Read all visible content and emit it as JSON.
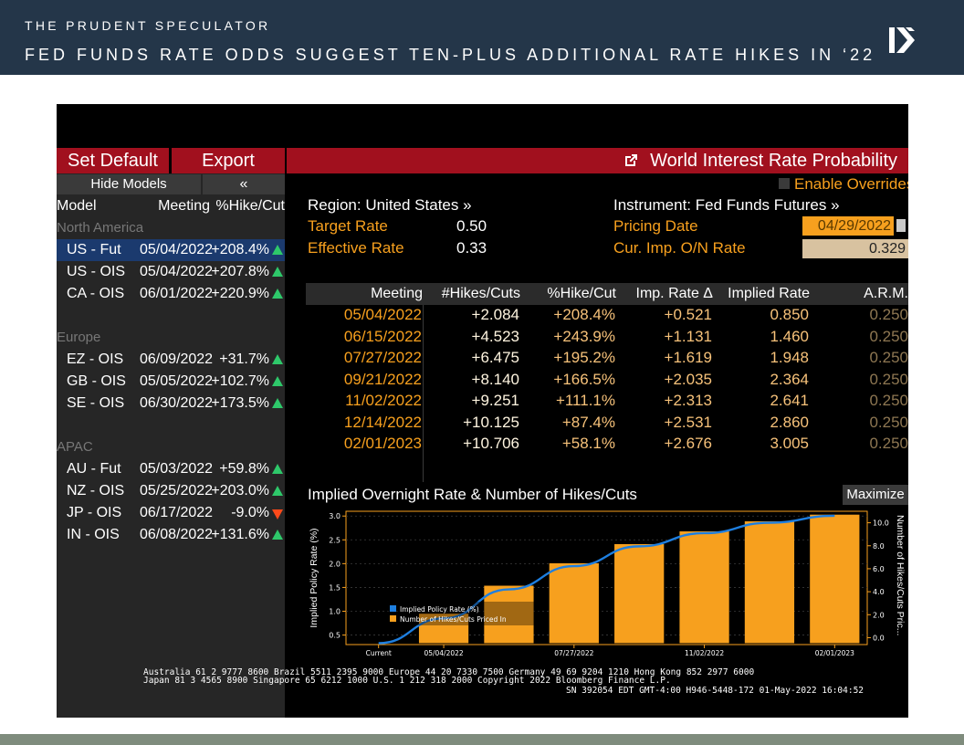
{
  "slide": {
    "brand": "THE PRUDENT SPECULATOR",
    "headline": "FED FUNDS RATE ODDS SUGGEST TEN-PLUS ADDITIONAL RATE HIKES IN ‘22"
  },
  "toolbar": {
    "set_default": "Set Default",
    "export": "Export",
    "title": "World Interest Rate Probability",
    "hide_models": "Hide Models",
    "collapse": "«",
    "enable_overrides": "Enable Overrides"
  },
  "models_panel": {
    "columns": [
      "Model",
      "Meeting",
      "%Hike/Cut"
    ],
    "groups": [
      {
        "name": "North America",
        "rows": [
          {
            "model": "US - Fut",
            "meeting": "05/04/2022",
            "pct": "+208.4%",
            "dir": "up",
            "selected": true
          },
          {
            "model": "US - OIS",
            "meeting": "05/04/2022",
            "pct": "+207.8%",
            "dir": "up"
          },
          {
            "model": "CA - OIS",
            "meeting": "06/01/2022",
            "pct": "+220.9%",
            "dir": "up"
          }
        ]
      },
      {
        "name": "Europe",
        "rows": [
          {
            "model": "EZ - OIS",
            "meeting": "06/09/2022",
            "pct": "+31.7%",
            "dir": "up"
          },
          {
            "model": "GB - OIS",
            "meeting": "05/05/2022",
            "pct": "+102.7%",
            "dir": "up"
          },
          {
            "model": "SE - OIS",
            "meeting": "06/30/2022",
            "pct": "+173.5%",
            "dir": "up"
          }
        ]
      },
      {
        "name": "APAC",
        "rows": [
          {
            "model": "AU - Fut",
            "meeting": "05/03/2022",
            "pct": "+59.8%",
            "dir": "up"
          },
          {
            "model": "NZ - OIS",
            "meeting": "05/25/2022",
            "pct": "+203.0%",
            "dir": "up"
          },
          {
            "model": "JP - OIS",
            "meeting": "06/17/2022",
            "pct": "-9.0%",
            "dir": "down"
          },
          {
            "model": "IN - OIS",
            "meeting": "06/08/2022",
            "pct": "+131.6%",
            "dir": "up"
          }
        ]
      }
    ]
  },
  "info": {
    "region_label": "Region: United States »",
    "instrument_label": "Instrument: Fed Funds Futures »",
    "target_rate_label": "Target Rate",
    "target_rate_value": "0.50",
    "effective_rate_label": "Effective Rate",
    "effective_rate_value": "0.33",
    "pricing_date_label": "Pricing Date",
    "pricing_date_value": "04/29/2022",
    "onrate_label": "Cur. Imp. O/N Rate",
    "onrate_value": "0.329"
  },
  "table": {
    "headers": [
      "Meeting",
      "#Hikes/Cuts",
      "%Hike/Cut",
      "Imp. Rate Δ",
      "Implied Rate",
      "A.R.M."
    ],
    "rows": [
      [
        "05/04/2022",
        "+2.084",
        "+208.4%",
        "+0.521",
        "0.850",
        "0.250"
      ],
      [
        "06/15/2022",
        "+4.523",
        "+243.9%",
        "+1.131",
        "1.460",
        "0.250"
      ],
      [
        "07/27/2022",
        "+6.475",
        "+195.2%",
        "+1.619",
        "1.948",
        "0.250"
      ],
      [
        "09/21/2022",
        "+8.140",
        "+166.5%",
        "+2.035",
        "2.364",
        "0.250"
      ],
      [
        "11/02/2022",
        "+9.251",
        "+111.1%",
        "+2.313",
        "2.641",
        "0.250"
      ],
      [
        "12/14/2022",
        "+10.125",
        "+87.4%",
        "+2.531",
        "2.860",
        "0.250"
      ],
      [
        "02/01/2023",
        "+10.706",
        "+58.1%",
        "+2.676",
        "3.005",
        "0.250"
      ]
    ]
  },
  "chart_panel": {
    "title": "Implied Overnight Rate & Number of Hikes/Cuts",
    "maximize": "Maximize"
  },
  "chart_data": {
    "type": "bar",
    "categories": [
      "Current",
      "05/04/2022",
      "06/15/2022",
      "07/27/2022",
      "09/21/2022",
      "11/02/2022",
      "12/14/2022",
      "02/01/2023"
    ],
    "x_tick_labels": [
      "Current",
      "05/04/2022",
      "07/27/2022",
      "11/02/2022",
      "02/01/2023"
    ],
    "series": [
      {
        "name": "Implied Policy Rate (%)",
        "kind": "line",
        "axis": "left",
        "color": "#1e7fe0",
        "values": [
          0.329,
          0.85,
          1.46,
          1.948,
          2.364,
          2.641,
          2.86,
          3.005
        ]
      },
      {
        "name": "Number of Hikes/Cuts Priced In",
        "kind": "bar",
        "axis": "right",
        "color": "#f7a01e",
        "values": [
          0,
          2.084,
          4.523,
          6.475,
          8.14,
          9.251,
          10.125,
          10.706
        ]
      }
    ],
    "ylabel": "Implied Policy Rate (%)",
    "y2label": "Number of Hikes/Cuts Pric...",
    "yticks": [
      "0.5",
      "1.0",
      "1.5",
      "2.0",
      "2.5",
      "3.0"
    ],
    "y2ticks": [
      "0.0",
      "2.0",
      "4.0",
      "6.0",
      "8.0",
      "10.0"
    ],
    "ylim": [
      0.3,
      3.1
    ],
    "y2lim": [
      -0.6,
      11.0
    ],
    "grid": true,
    "legend": "bottom-left"
  },
  "contacts": {
    "line1": "Australia 61 2 9777 8600 Brazil 5511 2395 9000 Europe 44 20 7330 7500 Germany 49 69 9204 1210 Hong Kong 852 2977 6000",
    "line2": "Japan 81 3 4565 8900      Singapore 65 6212 1000      U.S. 1 212 318 2000      Copyright 2022 Bloomberg Finance L.P.",
    "line3": "SN 392054 EDT  GMT-4:00 H946-5448-172 01-May-2022 16:04:52"
  },
  "colors": {
    "header_bg": "#243649",
    "accent_red": "#a1101e",
    "amber": "#f7a01e",
    "line_blue": "#1e7fe0",
    "up_green": "#2ec86a",
    "down_red": "#ff4a1a"
  }
}
